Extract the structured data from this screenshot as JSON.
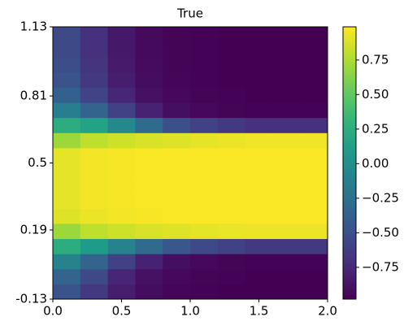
{
  "chart_data": {
    "type": "heatmap",
    "title": "True",
    "x": [
      0.1,
      0.3,
      0.5,
      0.7,
      0.9,
      1.1,
      1.3,
      1.5,
      1.7,
      1.9
    ],
    "y": [
      -0.095,
      -0.025,
      0.045,
      0.115,
      0.185,
      0.255,
      0.325,
      0.395,
      0.465,
      0.535,
      0.605,
      0.675,
      0.745,
      0.815,
      0.885,
      0.955,
      1.025,
      1.095
    ],
    "z": [
      [
        -0.48,
        -0.65,
        -0.82,
        -0.91,
        -0.95,
        -0.97,
        -0.98,
        -0.98,
        -0.98,
        -0.98
      ],
      [
        -0.35,
        -0.55,
        -0.77,
        -0.89,
        -0.94,
        -0.96,
        -0.97,
        -0.98,
        -0.98,
        -0.98
      ],
      [
        -0.1,
        -0.35,
        -0.6,
        -0.8,
        -0.9,
        -0.94,
        -0.96,
        -0.97,
        -0.97,
        -0.97
      ],
      [
        0.25,
        0.1,
        -0.1,
        -0.3,
        -0.45,
        -0.55,
        -0.6,
        -0.65,
        -0.65,
        -0.65
      ],
      [
        0.7,
        0.8,
        0.85,
        0.88,
        0.9,
        0.92,
        0.93,
        0.94,
        0.94,
        0.94
      ],
      [
        0.9,
        0.94,
        0.96,
        0.97,
        0.98,
        0.98,
        0.98,
        0.98,
        0.98,
        0.98
      ],
      [
        0.92,
        0.96,
        0.97,
        0.98,
        0.98,
        0.98,
        0.98,
        0.98,
        0.98,
        0.98
      ],
      [
        0.92,
        0.96,
        0.97,
        0.98,
        0.98,
        0.98,
        0.98,
        0.98,
        0.98,
        0.98
      ],
      [
        0.92,
        0.96,
        0.97,
        0.98,
        0.98,
        0.98,
        0.98,
        0.98,
        0.98,
        0.98
      ],
      [
        0.92,
        0.96,
        0.97,
        0.98,
        0.98,
        0.98,
        0.98,
        0.98,
        0.98,
        0.98
      ],
      [
        0.7,
        0.8,
        0.85,
        0.88,
        0.9,
        0.92,
        0.94,
        0.95,
        0.95,
        0.95
      ],
      [
        0.25,
        0.15,
        -0.05,
        -0.3,
        -0.5,
        -0.6,
        -0.65,
        -0.7,
        -0.7,
        -0.7
      ],
      [
        -0.15,
        -0.35,
        -0.6,
        -0.8,
        -0.9,
        -0.94,
        -0.96,
        -0.97,
        -0.97,
        -0.97
      ],
      [
        -0.38,
        -0.58,
        -0.77,
        -0.89,
        -0.94,
        -0.96,
        -0.97,
        -0.98,
        -0.98,
        -0.98
      ],
      [
        -0.48,
        -0.65,
        -0.82,
        -0.91,
        -0.95,
        -0.97,
        -0.98,
        -0.98,
        -0.98,
        -0.98
      ],
      [
        -0.52,
        -0.68,
        -0.84,
        -0.92,
        -0.96,
        -0.97,
        -0.98,
        -0.98,
        -0.98,
        -0.98
      ],
      [
        -0.55,
        -0.7,
        -0.85,
        -0.93,
        -0.96,
        -0.97,
        -0.98,
        -0.98,
        -0.98,
        -0.98
      ],
      [
        -0.55,
        -0.7,
        -0.85,
        -0.93,
        -0.96,
        -0.97,
        -0.98,
        -0.98,
        -0.98,
        -0.98
      ]
    ],
    "xlim": [
      0,
      2.0
    ],
    "xticks": [
      {
        "value": 0,
        "label": "0.0"
      },
      0.5,
      {
        "value": 1,
        "label": "1.0"
      },
      1.5,
      {
        "value": 2,
        "label": "2.0"
      }
    ],
    "ylim": [
      -0.13,
      1.13
    ],
    "yticks": [
      -0.13,
      0.19,
      0.5,
      0.81,
      1.13
    ],
    "clim": [
      -0.98,
      0.99
    ],
    "cticks": [
      {
        "value": -0.75,
        "label": "−0.75"
      },
      {
        "value": -0.5,
        "label": "−0.50"
      },
      {
        "value": -0.25,
        "label": "−0.25"
      },
      {
        "value": 0,
        "label": "0.00"
      },
      0.25,
      {
        "value": 0.5,
        "label": "0.50"
      },
      0.75
    ],
    "colormap": "viridis"
  }
}
